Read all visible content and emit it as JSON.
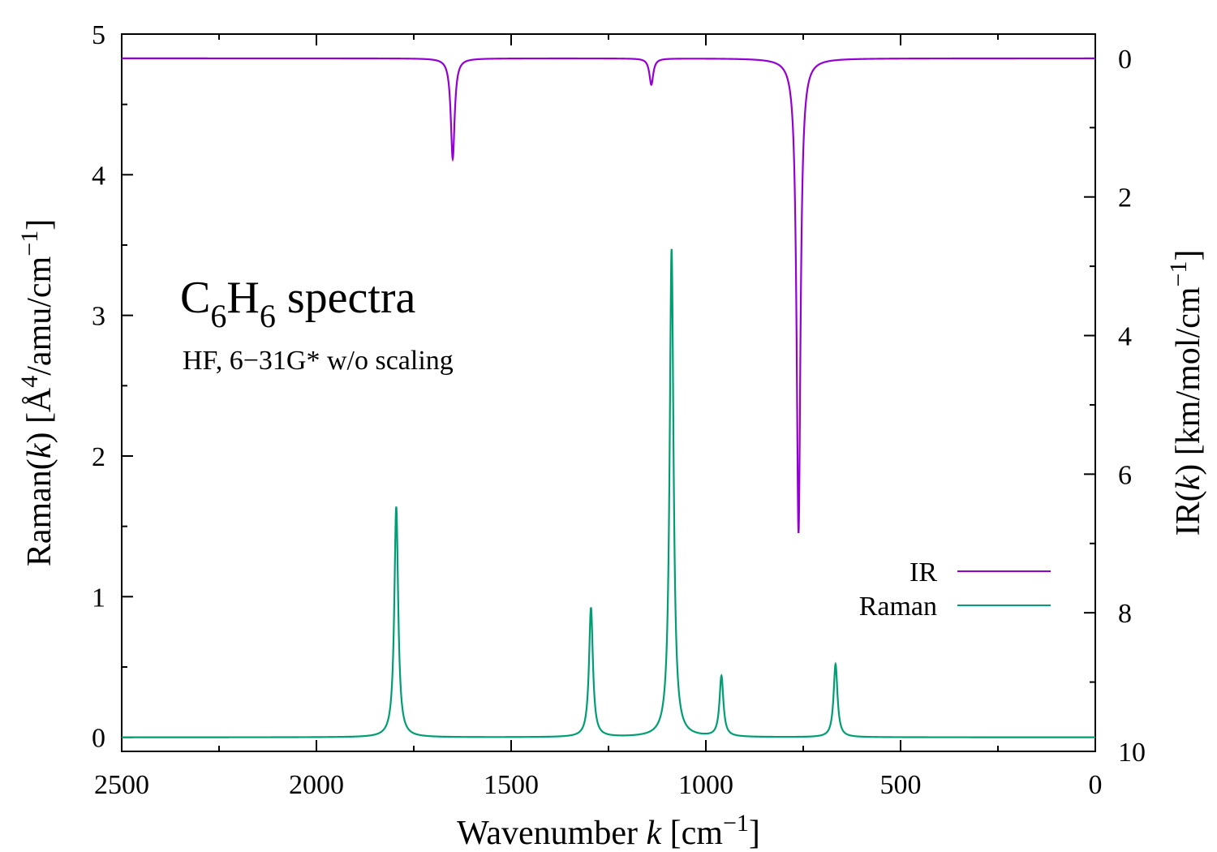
{
  "chart_data": {
    "type": "line",
    "annotation": {
      "title_main": "C",
      "title_sub1": "6",
      "title_mid": "H",
      "title_sub2": "6",
      "title_tail": " spectra",
      "subtitle": "HF, 6−31G* w/o scaling"
    },
    "x_axis": {
      "label_prefix": "Wavenumber  ",
      "label_var": "k",
      "label_unit_open": "  [cm",
      "label_unit_exp": "−1",
      "label_unit_close": "]",
      "range": [
        2500,
        0
      ],
      "reversed": true,
      "ticks": [
        2500,
        2000,
        1500,
        1000,
        500,
        0
      ]
    },
    "y_left": {
      "label_prefix": "Raman(",
      "label_var": "k",
      "label_mid": ")  [Å",
      "label_exp1": "4",
      "label_mid2": "/amu/cm",
      "label_exp2": "−1",
      "label_close": "]",
      "range": [
        -0.1,
        5
      ],
      "ticks": [
        0,
        1,
        2,
        3,
        4,
        5
      ]
    },
    "y_right": {
      "label_prefix": "IR(",
      "label_var": "k",
      "label_mid": ")  [km/mol/cm",
      "label_exp": "−1",
      "label_close": "]",
      "range": [
        10,
        -0.35
      ],
      "reversed": true,
      "ticks": [
        0,
        2,
        4,
        6,
        8,
        10
      ]
    },
    "legend": {
      "position": "lower-right"
    },
    "series": [
      {
        "name": "IR",
        "color": "#9400d3",
        "axis": "right",
        "peaks": [
          {
            "x": 1650,
            "y": 1.45
          },
          {
            "x": 1140,
            "y": 0.38
          },
          {
            "x": 762,
            "y": 6.85
          }
        ],
        "width": 6
      },
      {
        "name": "Raman",
        "color": "#009e73",
        "axis": "left",
        "peaks": [
          {
            "x": 1795,
            "y": 1.64
          },
          {
            "x": 1295,
            "y": 0.92
          },
          {
            "x": 1088,
            "y": 3.47
          },
          {
            "x": 960,
            "y": 0.43
          },
          {
            "x": 667,
            "y": 0.52
          }
        ],
        "width": 6
      }
    ]
  }
}
